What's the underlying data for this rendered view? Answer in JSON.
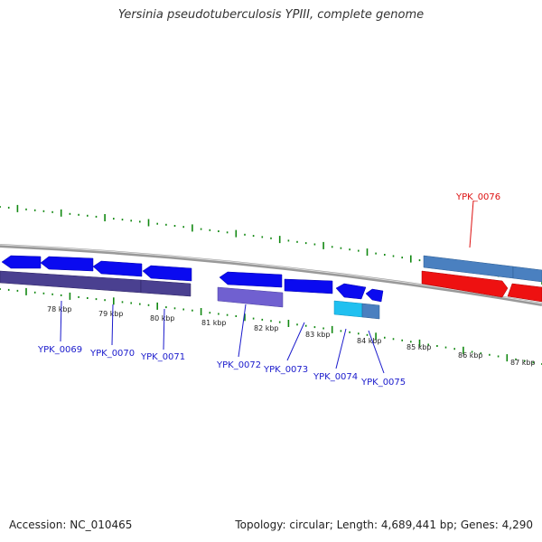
{
  "title": "Yersinia pseudotuberculosis YPIII, complete genome",
  "footer": {
    "accession": "Accession: NC_010465",
    "summary": "Topology: circular; Length: 4,689,441 bp; Genes: 4,290"
  },
  "kbp_labels": [
    "78 kbp",
    "79 kbp",
    "80 kbp",
    "81 kbp",
    "82 kbp",
    "83 kbp",
    "84 kbp",
    "85 kbp",
    "86 kbp",
    "87 kbp"
  ],
  "genes": [
    {
      "label": "YPK_0069",
      "color": "#1a1acc"
    },
    {
      "label": "YPK_0070",
      "color": "#1a1acc"
    },
    {
      "label": "YPK_0071",
      "color": "#1a1acc"
    },
    {
      "label": "YPK_0072",
      "color": "#1a1acc"
    },
    {
      "label": "YPK_0073",
      "color": "#1a1acc"
    },
    {
      "label": "YPK_0074",
      "color": "#1a1acc"
    },
    {
      "label": "YPK_0075",
      "color": "#1a1acc"
    },
    {
      "label": "YPK_0076",
      "color": "#dd1111"
    }
  ],
  "colors": {
    "backbone": "#999999",
    "tick": "#118811",
    "gene_blue": "#0a0af0",
    "cds_purple": "#4a4090",
    "cds_lavender": "#7060d0",
    "cds_cyan": "#20c0f0",
    "cds_steel": "#4a80c0",
    "rrna_red": "#ee1111"
  }
}
